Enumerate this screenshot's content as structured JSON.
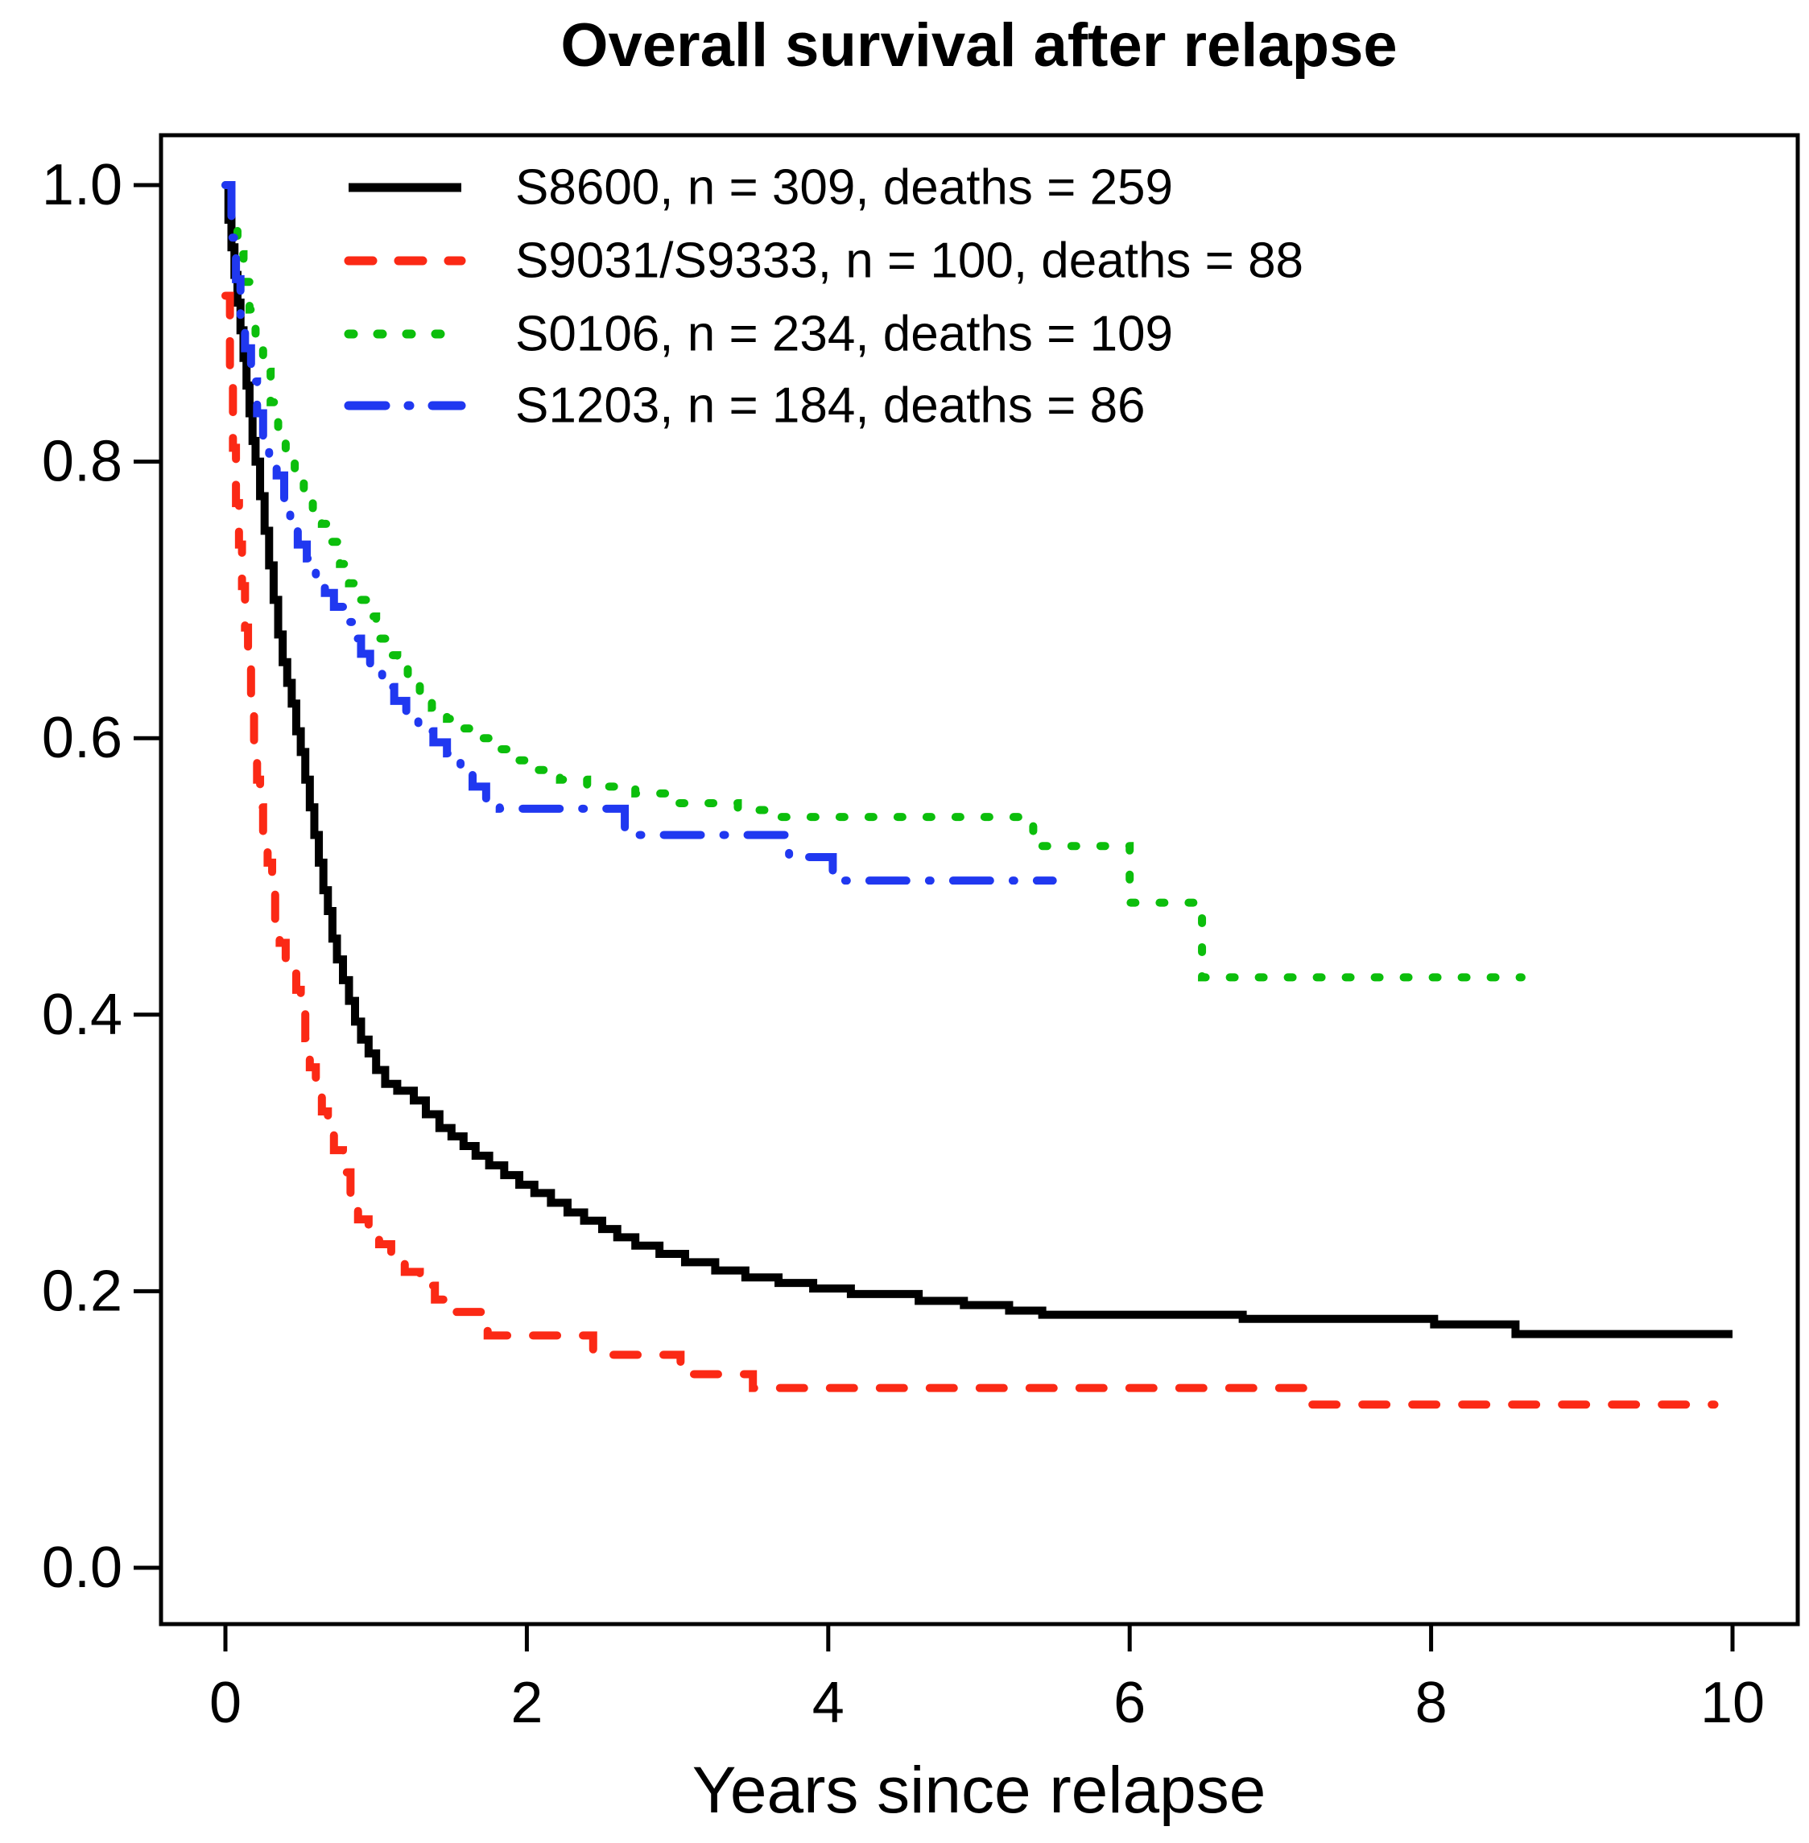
{
  "chart_data": {
    "type": "line",
    "variant": "kaplan-meier-step",
    "title": "Overall survival after relapse",
    "xlabel": "Years since relapse",
    "ylabel": "",
    "xlim": [
      0,
      10
    ],
    "ylim": [
      0,
      1
    ],
    "grid": false,
    "legend_position": "top-left-inside",
    "x_ticks": [
      0,
      2,
      4,
      6,
      8,
      10
    ],
    "x_tick_labels": [
      "0",
      "2",
      "4",
      "6",
      "8",
      "10"
    ],
    "y_ticks": [
      0.0,
      0.2,
      0.4,
      0.6,
      0.8,
      1.0
    ],
    "y_tick_labels": [
      "0.0",
      "0.2",
      "0.4",
      "0.6",
      "0.8",
      "1.0"
    ],
    "series": [
      {
        "name": "S8600",
        "label": "S8600, n = 309, deaths = 259",
        "n": 309,
        "deaths": 259,
        "color": "#000000",
        "line_style": "solid",
        "points": [
          [
            0,
            1.0
          ],
          [
            0.02,
            0.975
          ],
          [
            0.04,
            0.955
          ],
          [
            0.06,
            0.935
          ],
          [
            0.08,
            0.915
          ],
          [
            0.1,
            0.895
          ],
          [
            0.12,
            0.875
          ],
          [
            0.14,
            0.855
          ],
          [
            0.16,
            0.835
          ],
          [
            0.18,
            0.815
          ],
          [
            0.2,
            0.8
          ],
          [
            0.23,
            0.775
          ],
          [
            0.26,
            0.75
          ],
          [
            0.29,
            0.725
          ],
          [
            0.32,
            0.7
          ],
          [
            0.35,
            0.675
          ],
          [
            0.38,
            0.655
          ],
          [
            0.41,
            0.64
          ],
          [
            0.44,
            0.625
          ],
          [
            0.47,
            0.605
          ],
          [
            0.5,
            0.59
          ],
          [
            0.53,
            0.57
          ],
          [
            0.56,
            0.55
          ],
          [
            0.59,
            0.53
          ],
          [
            0.62,
            0.51
          ],
          [
            0.65,
            0.49
          ],
          [
            0.68,
            0.475
          ],
          [
            0.71,
            0.455
          ],
          [
            0.74,
            0.44
          ],
          [
            0.78,
            0.425
          ],
          [
            0.82,
            0.41
          ],
          [
            0.86,
            0.395
          ],
          [
            0.9,
            0.382
          ],
          [
            0.95,
            0.372
          ],
          [
            1.0,
            0.36
          ],
          [
            1.06,
            0.35
          ],
          [
            1.14,
            0.345
          ],
          [
            1.25,
            0.338
          ],
          [
            1.33,
            0.328
          ],
          [
            1.42,
            0.318
          ],
          [
            1.5,
            0.312
          ],
          [
            1.58,
            0.305
          ],
          [
            1.66,
            0.298
          ],
          [
            1.75,
            0.291
          ],
          [
            1.85,
            0.284
          ],
          [
            1.95,
            0.277
          ],
          [
            2.05,
            0.271
          ],
          [
            2.16,
            0.264
          ],
          [
            2.27,
            0.257
          ],
          [
            2.38,
            0.251
          ],
          [
            2.5,
            0.245
          ],
          [
            2.6,
            0.239
          ],
          [
            2.72,
            0.233
          ],
          [
            2.88,
            0.227
          ],
          [
            3.05,
            0.221
          ],
          [
            3.25,
            0.215
          ],
          [
            3.45,
            0.21
          ],
          [
            3.67,
            0.206
          ],
          [
            3.9,
            0.202
          ],
          [
            4.15,
            0.198
          ],
          [
            4.6,
            0.193
          ],
          [
            4.9,
            0.19
          ],
          [
            5.2,
            0.186
          ],
          [
            5.42,
            0.183
          ],
          [
            6.75,
            0.18
          ],
          [
            8.02,
            0.176
          ],
          [
            8.56,
            0.169
          ],
          [
            10.0,
            0.169
          ]
        ]
      },
      {
        "name": "S9031/S9333",
        "label": "S9031/S9333, n = 100, deaths = 88",
        "n": 100,
        "deaths": 88,
        "color": "#FB2915",
        "line_style": "dashed",
        "points": [
          [
            0,
            0.92
          ],
          [
            0.03,
            0.86
          ],
          [
            0.05,
            0.81
          ],
          [
            0.07,
            0.77
          ],
          [
            0.09,
            0.74
          ],
          [
            0.11,
            0.71
          ],
          [
            0.13,
            0.68
          ],
          [
            0.15,
            0.65
          ],
          [
            0.17,
            0.62
          ],
          [
            0.19,
            0.595
          ],
          [
            0.21,
            0.57
          ],
          [
            0.23,
            0.55
          ],
          [
            0.25,
            0.53
          ],
          [
            0.28,
            0.51
          ],
          [
            0.31,
            0.49
          ],
          [
            0.33,
            0.465
          ],
          [
            0.36,
            0.452
          ],
          [
            0.4,
            0.44
          ],
          [
            0.44,
            0.43
          ],
          [
            0.47,
            0.418
          ],
          [
            0.5,
            0.403
          ],
          [
            0.53,
            0.383
          ],
          [
            0.56,
            0.362
          ],
          [
            0.6,
            0.342
          ],
          [
            0.64,
            0.33
          ],
          [
            0.68,
            0.316
          ],
          [
            0.72,
            0.302
          ],
          [
            0.78,
            0.286
          ],
          [
            0.83,
            0.27
          ],
          [
            0.88,
            0.252
          ],
          [
            0.95,
            0.243
          ],
          [
            1.02,
            0.234
          ],
          [
            1.1,
            0.224
          ],
          [
            1.19,
            0.214
          ],
          [
            1.29,
            0.204
          ],
          [
            1.39,
            0.194
          ],
          [
            1.5,
            0.185
          ],
          [
            1.74,
            0.168
          ],
          [
            2.44,
            0.154
          ],
          [
            3.02,
            0.14
          ],
          [
            3.5,
            0.13
          ],
          [
            7.2,
            0.118
          ],
          [
            9.88,
            0.118
          ]
        ]
      },
      {
        "name": "S0106",
        "label": "S0106, n = 234, deaths = 109",
        "n": 234,
        "deaths": 109,
        "color": "#0CBE0C",
        "line_style": "dotted",
        "points": [
          [
            0,
            1.0
          ],
          [
            0.04,
            0.97
          ],
          [
            0.08,
            0.95
          ],
          [
            0.12,
            0.93
          ],
          [
            0.16,
            0.91
          ],
          [
            0.2,
            0.888
          ],
          [
            0.25,
            0.865
          ],
          [
            0.3,
            0.843
          ],
          [
            0.35,
            0.822
          ],
          [
            0.4,
            0.805
          ],
          [
            0.46,
            0.79
          ],
          [
            0.52,
            0.778
          ],
          [
            0.58,
            0.766
          ],
          [
            0.64,
            0.755
          ],
          [
            0.7,
            0.742
          ],
          [
            0.76,
            0.726
          ],
          [
            0.82,
            0.712
          ],
          [
            0.88,
            0.7
          ],
          [
            0.94,
            0.688
          ],
          [
            1.0,
            0.672
          ],
          [
            1.07,
            0.66
          ],
          [
            1.14,
            0.65
          ],
          [
            1.21,
            0.64
          ],
          [
            1.29,
            0.63
          ],
          [
            1.37,
            0.622
          ],
          [
            1.47,
            0.614
          ],
          [
            1.57,
            0.607
          ],
          [
            1.68,
            0.6
          ],
          [
            1.8,
            0.592
          ],
          [
            1.93,
            0.584
          ],
          [
            2.07,
            0.577
          ],
          [
            2.22,
            0.57
          ],
          [
            2.4,
            0.565
          ],
          [
            2.72,
            0.56
          ],
          [
            3.0,
            0.553
          ],
          [
            3.4,
            0.548
          ],
          [
            3.65,
            0.543
          ],
          [
            5.36,
            0.522
          ],
          [
            6.0,
            0.481
          ],
          [
            6.48,
            0.427
          ],
          [
            8.6,
            0.427
          ]
        ]
      },
      {
        "name": "S1203",
        "label": "S1203, n = 184, deaths = 86",
        "n": 184,
        "deaths": 86,
        "color": "#2038F0",
        "line_style": "dashdot",
        "points": [
          [
            0,
            1.0
          ],
          [
            0.04,
            0.962
          ],
          [
            0.07,
            0.932
          ],
          [
            0.1,
            0.905
          ],
          [
            0.13,
            0.882
          ],
          [
            0.17,
            0.858
          ],
          [
            0.21,
            0.835
          ],
          [
            0.25,
            0.815
          ],
          [
            0.29,
            0.8
          ],
          [
            0.34,
            0.79
          ],
          [
            0.39,
            0.772
          ],
          [
            0.43,
            0.752
          ],
          [
            0.48,
            0.74
          ],
          [
            0.54,
            0.73
          ],
          [
            0.6,
            0.716
          ],
          [
            0.66,
            0.705
          ],
          [
            0.72,
            0.695
          ],
          [
            0.78,
            0.684
          ],
          [
            0.84,
            0.672
          ],
          [
            0.9,
            0.661
          ],
          [
            0.96,
            0.649
          ],
          [
            1.04,
            0.637
          ],
          [
            1.12,
            0.627
          ],
          [
            1.2,
            0.616
          ],
          [
            1.28,
            0.605
          ],
          [
            1.38,
            0.597
          ],
          [
            1.47,
            0.589
          ],
          [
            1.56,
            0.578
          ],
          [
            1.64,
            0.565
          ],
          [
            1.73,
            0.556
          ],
          [
            1.82,
            0.549
          ],
          [
            2.65,
            0.53
          ],
          [
            3.74,
            0.514
          ],
          [
            4.03,
            0.497
          ],
          [
            5.49,
            0.497
          ]
        ]
      }
    ]
  }
}
